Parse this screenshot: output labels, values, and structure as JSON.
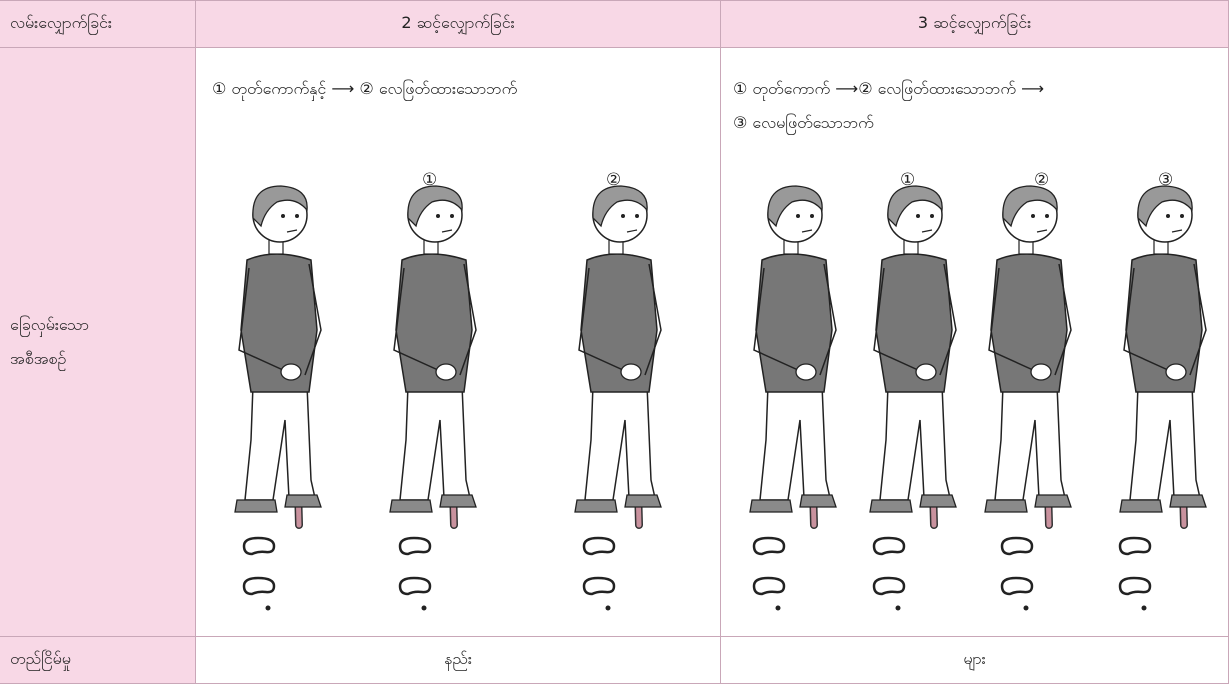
{
  "table": {
    "header": [
      "လမ်းလျှောက်ခြင်း",
      "2 ဆင့်လျှောက်ခြင်း",
      "3 ဆင့်လျှောက်ခြင်း"
    ],
    "middle_row": {
      "label": [
        "ခြေလှမ်းသော",
        "အစီအစဉ်"
      ],
      "cells": [
        {
          "description": "① တုတ်ကောက်နှင့် ⟶ ② လေဖြတ်ထားသောဘက်",
          "figure_labels": [
            "①",
            "②"
          ]
        },
        {
          "description": [
            "① တုတ်ကောက် ⟶② လေဖြတ်ထားသောဘက် ⟶",
            "③ လေမဖြတ်သောဘက်"
          ],
          "figure_labels": [
            "①",
            "②",
            "③"
          ]
        }
      ]
    },
    "bottom_row": {
      "label": "တည်ငြိမ်မှု",
      "cells": [
        "နည်း",
        "များ"
      ]
    }
  }
}
